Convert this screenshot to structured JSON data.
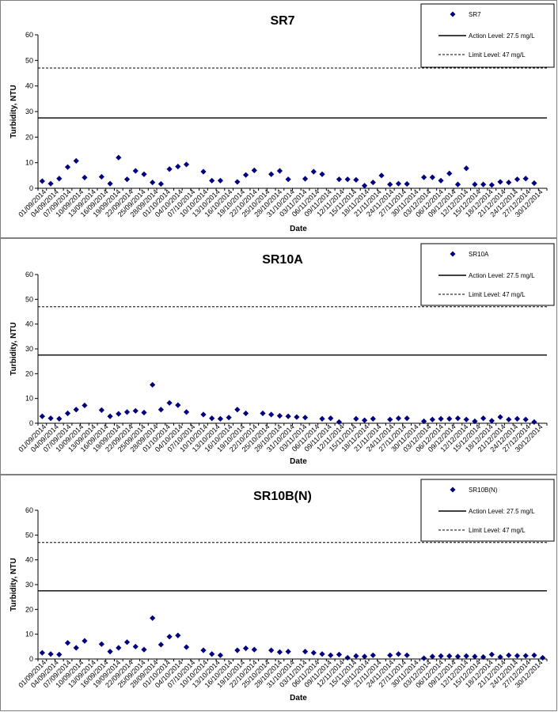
{
  "chart_data": [
    {
      "type": "scatter",
      "title": "SR7",
      "xlabel": "Date",
      "ylabel": "Turbidity, NTU",
      "ylim": [
        0,
        60
      ],
      "yticks": [
        "0",
        "10",
        "20",
        "30",
        "40",
        "50",
        "60"
      ],
      "x_tick_labels": [
        "01/09/2014",
        "04/09/2014",
        "07/09/2014",
        "10/09/2014",
        "13/09/2014",
        "16/09/2014",
        "19/09/2014",
        "22/09/2014",
        "25/09/2014",
        "28/09/2014",
        "01/10/2014",
        "04/10/2014",
        "07/10/2014",
        "10/10/2014",
        "13/10/2014",
        "16/10/2014",
        "19/10/2014",
        "22/10/2014",
        "25/10/2014",
        "28/10/2014",
        "31/10/2014",
        "03/11/2014",
        "06/11/2014",
        "09/11/2014",
        "12/11/2014",
        "15/11/2014",
        "18/11/2014",
        "21/11/2014",
        "24/11/2014",
        "27/11/2014",
        "30/11/2014",
        "03/12/2014",
        "06/12/2014",
        "09/12/2014",
        "12/12/2014",
        "15/12/2014",
        "18/12/2014",
        "21/12/2014",
        "24/12/2014",
        "27/12/2014",
        "30/12/2014"
      ],
      "series": [
        {
          "name": "SR7",
          "points": [
            [
              0,
              2.8
            ],
            [
              1,
              1.8
            ],
            [
              2,
              3.8
            ],
            [
              3,
              8.3
            ],
            [
              4,
              10.7
            ],
            [
              5,
              4.2
            ],
            [
              7,
              4.5
            ],
            [
              8,
              1.8
            ],
            [
              9,
              12.0
            ],
            [
              10,
              3.5
            ],
            [
              11,
              6.8
            ],
            [
              12,
              5.5
            ],
            [
              13,
              2.3
            ],
            [
              14,
              1.7
            ],
            [
              15,
              7.5
            ],
            [
              16,
              8.5
            ],
            [
              17,
              9.3
            ],
            [
              19,
              6.5
            ],
            [
              20,
              3.0
            ],
            [
              21,
              3.0
            ],
            [
              23,
              2.5
            ],
            [
              24,
              5.2
            ],
            [
              25,
              7.0
            ],
            [
              27,
              5.5
            ],
            [
              28,
              6.8
            ],
            [
              29,
              3.5
            ],
            [
              31,
              3.7
            ],
            [
              32,
              6.5
            ],
            [
              33,
              5.5
            ],
            [
              35,
              3.5
            ],
            [
              36,
              3.5
            ],
            [
              37,
              3.3
            ],
            [
              38,
              1.0
            ],
            [
              39,
              2.3
            ],
            [
              40,
              5.0
            ],
            [
              41,
              1.5
            ],
            [
              42,
              1.8
            ],
            [
              43,
              1.7
            ],
            [
              45,
              4.3
            ],
            [
              46,
              4.3
            ],
            [
              47,
              3.0
            ],
            [
              48,
              5.8
            ],
            [
              49,
              1.5
            ],
            [
              50,
              7.8
            ],
            [
              51,
              1.5
            ],
            [
              52,
              1.5
            ],
            [
              53,
              1.3
            ],
            [
              54,
              2.5
            ],
            [
              55,
              2.3
            ],
            [
              56,
              3.5
            ],
            [
              57,
              3.8
            ],
            [
              58,
              2.0
            ]
          ]
        }
      ],
      "reference_lines": [
        {
          "name": "Action Level: 27.5 mg/L",
          "value": 27.5,
          "style": "solid"
        },
        {
          "name": "Limit Level: 47 mg/L",
          "value": 47,
          "style": "dashed"
        }
      ],
      "legend": "top-right",
      "grid": false
    },
    {
      "type": "scatter",
      "title": "SR10A",
      "xlabel": "Date",
      "ylabel": "Turbidity, NTU",
      "ylim": [
        0,
        60
      ],
      "yticks": [
        "0",
        "10",
        "20",
        "30",
        "40",
        "50",
        "60"
      ],
      "x_tick_labels": [
        "01/09/2014",
        "04/09/2014",
        "07/09/2014",
        "10/09/2014",
        "13/09/2014",
        "16/09/2014",
        "19/09/2014",
        "22/09/2014",
        "25/09/2014",
        "28/09/2014",
        "01/10/2014",
        "04/10/2014",
        "07/10/2014",
        "10/10/2014",
        "13/10/2014",
        "16/10/2014",
        "19/10/2014",
        "22/10/2014",
        "25/10/2014",
        "28/10/2014",
        "31/10/2014",
        "03/11/2014",
        "06/11/2014",
        "09/11/2014",
        "12/11/2014",
        "15/11/2014",
        "18/11/2014",
        "21/11/2014",
        "24/11/2014",
        "27/11/2014",
        "30/11/2014",
        "03/12/2014",
        "06/12/2014",
        "09/12/2014",
        "12/12/2014",
        "15/12/2014",
        "18/12/2014",
        "21/12/2014",
        "24/12/2014",
        "27/12/2014",
        "30/12/2014"
      ],
      "series": [
        {
          "name": "SR10A",
          "points": [
            [
              0,
              2.8
            ],
            [
              1,
              2.0
            ],
            [
              2,
              1.8
            ],
            [
              3,
              4.0
            ],
            [
              4,
              5.5
            ],
            [
              5,
              7.2
            ],
            [
              7,
              5.3
            ],
            [
              8,
              2.8
            ],
            [
              9,
              3.8
            ],
            [
              10,
              4.5
            ],
            [
              11,
              5.0
            ],
            [
              12,
              4.3
            ],
            [
              13,
              15.5
            ],
            [
              14,
              5.5
            ],
            [
              15,
              8.2
            ],
            [
              16,
              7.3
            ],
            [
              17,
              4.5
            ],
            [
              19,
              3.5
            ],
            [
              20,
              2.0
            ],
            [
              21,
              1.8
            ],
            [
              22,
              2.3
            ],
            [
              23,
              5.5
            ],
            [
              24,
              4.0
            ],
            [
              26,
              4.0
            ],
            [
              27,
              3.5
            ],
            [
              28,
              3.0
            ],
            [
              29,
              2.8
            ],
            [
              30,
              2.5
            ],
            [
              31,
              2.3
            ],
            [
              33,
              1.8
            ],
            [
              34,
              2.0
            ],
            [
              35,
              0.5
            ],
            [
              37,
              1.8
            ],
            [
              38,
              1.2
            ],
            [
              39,
              1.8
            ],
            [
              41,
              1.5
            ],
            [
              42,
              2.0
            ],
            [
              43,
              2.0
            ],
            [
              45,
              0.8
            ],
            [
              46,
              1.5
            ],
            [
              47,
              1.8
            ],
            [
              48,
              1.8
            ],
            [
              49,
              2.0
            ],
            [
              50,
              1.5
            ],
            [
              51,
              0.8
            ],
            [
              52,
              2.0
            ],
            [
              53,
              1.0
            ],
            [
              54,
              2.5
            ],
            [
              55,
              1.5
            ],
            [
              56,
              1.8
            ],
            [
              57,
              1.5
            ],
            [
              58,
              0.5
            ]
          ]
        }
      ],
      "reference_lines": [
        {
          "name": "Action Level: 27.5 mg/L",
          "value": 27.5,
          "style": "solid"
        },
        {
          "name": "Limit Level: 47 mg/L",
          "value": 47,
          "style": "dashed"
        }
      ],
      "legend": "top-right",
      "grid": false
    },
    {
      "type": "scatter",
      "title": "SR10B(N)",
      "xlabel": "Date",
      "ylabel": "Turbidity, NTU",
      "ylim": [
        0,
        60
      ],
      "yticks": [
        "0",
        "10",
        "20",
        "30",
        "40",
        "50",
        "60"
      ],
      "x_tick_labels": [
        "01/09/2014",
        "04/09/2014",
        "07/09/2014",
        "10/09/2014",
        "13/09/2014",
        "16/09/2014",
        "19/09/2014",
        "22/09/2014",
        "25/09/2014",
        "28/09/2014",
        "01/10/2014",
        "04/10/2014",
        "07/10/2014",
        "10/10/2014",
        "13/10/2014",
        "16/10/2014",
        "19/10/2014",
        "22/10/2014",
        "25/10/2014",
        "28/10/2014",
        "31/10/2014",
        "03/11/2014",
        "06/11/2014",
        "09/11/2014",
        "12/11/2014",
        "15/11/2014",
        "18/11/2014",
        "21/11/2014",
        "24/11/2014",
        "27/11/2014",
        "30/11/2014",
        "03/12/2014",
        "06/12/2014",
        "09/12/2014",
        "12/12/2014",
        "15/12/2014",
        "18/12/2014",
        "21/12/2014",
        "24/12/2014",
        "27/12/2014",
        "30/12/2014"
      ],
      "series": [
        {
          "name": "SR10B(N)",
          "points": [
            [
              0,
              2.5
            ],
            [
              1,
              2.0
            ],
            [
              2,
              1.8
            ],
            [
              3,
              6.5
            ],
            [
              4,
              4.5
            ],
            [
              5,
              7.3
            ],
            [
              7,
              6.0
            ],
            [
              8,
              3.0
            ],
            [
              9,
              4.5
            ],
            [
              10,
              6.8
            ],
            [
              11,
              5.0
            ],
            [
              12,
              3.8
            ],
            [
              13,
              16.5
            ],
            [
              14,
              5.8
            ],
            [
              15,
              9.0
            ],
            [
              16,
              9.5
            ],
            [
              17,
              4.8
            ],
            [
              19,
              3.5
            ],
            [
              20,
              2.0
            ],
            [
              21,
              1.5
            ],
            [
              23,
              3.5
            ],
            [
              24,
              4.3
            ],
            [
              25,
              3.8
            ],
            [
              27,
              3.5
            ],
            [
              28,
              2.8
            ],
            [
              29,
              3.0
            ],
            [
              31,
              3.0
            ],
            [
              32,
              2.5
            ],
            [
              33,
              2.0
            ],
            [
              34,
              1.5
            ],
            [
              35,
              1.8
            ],
            [
              36,
              0.5
            ],
            [
              37,
              1.2
            ],
            [
              38,
              1.0
            ],
            [
              39,
              1.5
            ],
            [
              41,
              1.5
            ],
            [
              42,
              2.0
            ],
            [
              43,
              1.5
            ],
            [
              45,
              0.3
            ],
            [
              46,
              1.0
            ],
            [
              47,
              1.2
            ],
            [
              48,
              1.2
            ],
            [
              49,
              1.0
            ],
            [
              50,
              1.2
            ],
            [
              51,
              1.0
            ],
            [
              52,
              0.8
            ],
            [
              53,
              1.8
            ],
            [
              54,
              0.8
            ],
            [
              55,
              1.5
            ],
            [
              56,
              1.3
            ],
            [
              57,
              1.3
            ],
            [
              58,
              1.5
            ],
            [
              59,
              0.5
            ]
          ]
        }
      ],
      "reference_lines": [
        {
          "name": "Action Level: 27.5 mg/L",
          "value": 27.5,
          "style": "solid"
        },
        {
          "name": "Limit Level: 47 mg/L",
          "value": 47,
          "style": "dashed"
        }
      ],
      "legend": "top-right",
      "grid": false
    }
  ],
  "style": {
    "marker_color": "#000080",
    "line_color": "#000000"
  }
}
